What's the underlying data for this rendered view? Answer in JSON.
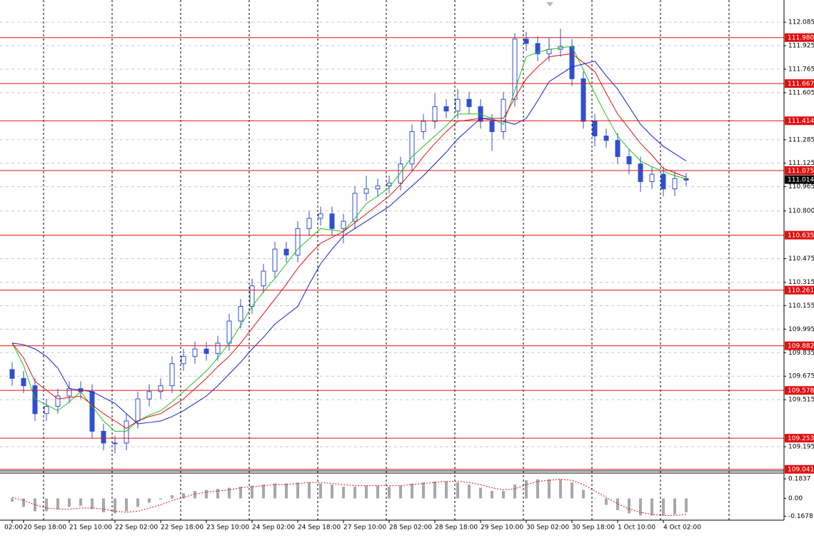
{
  "chart_data": [
    {
      "type": "candlestick",
      "color": "#2f4fd0",
      "categories": [
        "02:00",
        "20 Sep 18:00",
        null,
        null,
        null,
        "21 Sep 10:00",
        null,
        null,
        null,
        "22 Sep 02:00",
        null,
        null,
        null,
        "22 Sep 18:00",
        null,
        null,
        null,
        "23 Sep 10:00",
        null,
        null,
        null,
        "24 Sep 02:00",
        null,
        null,
        null,
        "24 Sep 18:00",
        null,
        null,
        null,
        "27 Sep 10:00",
        null,
        null,
        null,
        "28 Sep 02:00",
        null,
        null,
        null,
        "28 Sep 18:00",
        null,
        null,
        null,
        "29 Sep 10:00",
        null,
        null,
        null,
        "30 Sep 02:00",
        null,
        null,
        null,
        "30 Sep 18:00",
        null,
        null,
        null,
        "1 Oct 10:00",
        null,
        null,
        null,
        "4 Oct 02:00",
        null,
        null
      ],
      "open": [
        109.72,
        109.66,
        109.61,
        109.42,
        109.47,
        109.54,
        109.59,
        109.57,
        109.3,
        109.22,
        109.22,
        109.37,
        109.52,
        109.57,
        109.61,
        109.76,
        109.81,
        109.86,
        109.83,
        109.9,
        110.05,
        110.15,
        110.29,
        110.39,
        110.54,
        110.5,
        110.68,
        110.75,
        110.78,
        110.68,
        110.73,
        110.92,
        110.95,
        110.97,
        110.99,
        111.12,
        111.34,
        111.41,
        111.51,
        111.48,
        111.56,
        111.51,
        111.41,
        111.34,
        111.56,
        111.97,
        111.94,
        111.87,
        111.9,
        111.92,
        111.7,
        111.41,
        111.31,
        111.28,
        111.17,
        111.12,
        111.0,
        111.05,
        110.95,
        111.02
      ],
      "high": [
        109.77,
        109.71,
        109.66,
        109.52,
        109.59,
        109.64,
        109.64,
        109.62,
        109.35,
        109.27,
        109.42,
        109.57,
        109.62,
        109.66,
        109.81,
        109.86,
        109.91,
        109.91,
        109.95,
        110.1,
        110.2,
        110.34,
        110.44,
        110.59,
        110.59,
        110.73,
        110.8,
        110.83,
        110.83,
        110.78,
        110.97,
        111.04,
        111.02,
        111.04,
        111.17,
        111.39,
        111.46,
        111.6,
        111.56,
        111.63,
        111.61,
        111.56,
        111.46,
        111.61,
        112.01,
        112.02,
        111.99,
        111.98,
        112.04,
        111.97,
        111.75,
        111.46,
        111.36,
        111.33,
        111.22,
        111.17,
        111.1,
        111.1,
        111.07,
        111.06
      ],
      "low": [
        109.61,
        109.56,
        109.37,
        109.37,
        109.42,
        109.49,
        109.52,
        109.25,
        109.17,
        109.15,
        109.17,
        109.32,
        109.47,
        109.52,
        109.56,
        109.71,
        109.76,
        109.78,
        109.78,
        109.85,
        110.0,
        110.1,
        110.24,
        110.34,
        110.45,
        110.45,
        110.63,
        110.7,
        110.63,
        110.58,
        110.68,
        110.87,
        110.9,
        110.92,
        110.94,
        111.07,
        111.29,
        111.36,
        111.43,
        111.43,
        111.46,
        111.36,
        111.21,
        111.29,
        111.51,
        111.89,
        111.82,
        111.82,
        111.85,
        111.65,
        111.36,
        111.24,
        111.23,
        111.12,
        111.05,
        110.93,
        110.95,
        110.9,
        110.9,
        110.97
      ],
      "close": [
        109.66,
        109.61,
        109.42,
        109.47,
        109.54,
        109.59,
        109.57,
        109.3,
        109.22,
        109.22,
        109.37,
        109.52,
        109.57,
        109.61,
        109.76,
        109.81,
        109.86,
        109.83,
        109.9,
        110.05,
        110.15,
        110.29,
        110.39,
        110.54,
        110.5,
        110.68,
        110.75,
        110.78,
        110.68,
        110.73,
        110.92,
        110.95,
        110.97,
        110.99,
        111.12,
        111.34,
        111.41,
        111.51,
        111.48,
        111.56,
        111.51,
        111.41,
        111.34,
        111.56,
        111.97,
        111.94,
        111.87,
        111.9,
        111.92,
        111.7,
        111.41,
        111.31,
        111.28,
        111.17,
        111.12,
        111.0,
        111.05,
        110.95,
        111.02,
        111.01
      ],
      "indicators": [
        {
          "color": "#22c022",
          "values": [
            109.9,
            109.75,
            109.52,
            109.48,
            109.44,
            109.5,
            109.57,
            109.47,
            109.37,
            109.3,
            109.3,
            109.37,
            109.41,
            109.44,
            109.5,
            109.57,
            109.64,
            109.71,
            109.8,
            109.9,
            110.02,
            110.15,
            110.25,
            110.34,
            110.44,
            110.54,
            110.61,
            110.68,
            110.67,
            110.66,
            110.75,
            110.85,
            110.9,
            110.96,
            111.06,
            111.17,
            111.24,
            111.31,
            111.38,
            111.46,
            111.46,
            111.46,
            111.43,
            111.39,
            111.62,
            111.85,
            111.88,
            111.9,
            111.91,
            111.92,
            111.76,
            111.6,
            111.45,
            111.31,
            111.22,
            111.14,
            111.1,
            111.07,
            111.04,
            111.02
          ]
        },
        {
          "color": "#e01010",
          "values": [
            109.9,
            109.8,
            109.64,
            109.58,
            109.52,
            109.53,
            109.54,
            109.48,
            109.42,
            109.37,
            109.32,
            109.37,
            109.4,
            109.42,
            109.47,
            109.52,
            109.59,
            109.66,
            109.74,
            109.81,
            109.9,
            110.0,
            110.1,
            110.2,
            110.3,
            110.41,
            110.5,
            110.58,
            110.62,
            110.66,
            110.72,
            110.78,
            110.84,
            110.9,
            110.98,
            111.07,
            111.17,
            111.26,
            111.34,
            111.41,
            111.42,
            111.43,
            111.43,
            111.43,
            111.57,
            111.7,
            111.78,
            111.85,
            111.86,
            111.87,
            111.81,
            111.75,
            111.6,
            111.46,
            111.36,
            111.26,
            111.18,
            111.09,
            111.06,
            111.03
          ]
        },
        {
          "color": "#1020d0",
          "values": [
            109.9,
            109.89,
            109.86,
            109.81,
            109.73,
            109.59,
            109.58,
            109.57,
            109.53,
            109.49,
            109.42,
            109.35,
            109.36,
            109.37,
            109.4,
            109.44,
            109.49,
            109.54,
            109.61,
            109.69,
            109.77,
            109.86,
            109.94,
            110.03,
            110.09,
            110.15,
            110.3,
            110.44,
            110.54,
            110.63,
            110.68,
            110.73,
            110.78,
            110.83,
            110.9,
            110.97,
            111.04,
            111.12,
            111.2,
            111.29,
            111.36,
            111.43,
            111.42,
            111.41,
            111.39,
            111.43,
            111.55,
            111.68,
            111.73,
            111.78,
            111.8,
            111.82,
            111.72,
            111.63,
            111.51,
            111.39,
            111.31,
            111.24,
            111.19,
            111.14
          ]
        }
      ],
      "ylim": [
        109.03,
        112.236
      ],
      "yticks": [
        112.085,
        111.925,
        111.765,
        111.605,
        111.285,
        111.125,
        110.965,
        {
          "value": 110.8,
          "label": "110.800"
        },
        110.475,
        110.315,
        110.155,
        109.995,
        109.835,
        109.675,
        109.515,
        109.195
      ],
      "grid": true,
      "levels": [
        {
          "value": 111.98,
          "label": "111.980"
        },
        111.667,
        111.414,
        111.075,
        110.635,
        110.261,
        109.882,
        109.578,
        109.253,
        109.041
      ],
      "level_color": "#e01010",
      "last_price": 111.014
    },
    {
      "type": "bar",
      "color": "#a8a8a8",
      "values": [
        -0.03,
        -0.08,
        -0.12,
        -0.12,
        -0.1,
        -0.08,
        -0.07,
        -0.1,
        -0.13,
        -0.14,
        -0.12,
        -0.08,
        -0.04,
        -0.01,
        0.03,
        0.05,
        0.07,
        0.08,
        0.09,
        0.1,
        0.11,
        0.12,
        0.13,
        0.14,
        0.14,
        0.15,
        0.15,
        0.14,
        0.13,
        0.11,
        0.11,
        0.12,
        0.12,
        0.11,
        0.12,
        0.14,
        0.15,
        0.16,
        0.16,
        0.15,
        0.13,
        0.1,
        0.07,
        0.07,
        0.13,
        0.17,
        0.18,
        0.18,
        0.18,
        0.15,
        0.08,
        0.0,
        -0.06,
        -0.11,
        -0.14,
        -0.16,
        -0.16,
        -0.16,
        -0.15,
        -0.13
      ],
      "signal": {
        "color": "#e01010",
        "values": [
          0.01,
          -0.02,
          -0.06,
          -0.09,
          -0.1,
          -0.1,
          -0.09,
          -0.09,
          -0.1,
          -0.12,
          -0.13,
          -0.12,
          -0.09,
          -0.06,
          -0.02,
          0.01,
          0.04,
          0.06,
          0.07,
          0.08,
          0.1,
          0.11,
          0.12,
          0.13,
          0.13,
          0.14,
          0.15,
          0.15,
          0.14,
          0.13,
          0.12,
          0.12,
          0.12,
          0.12,
          0.12,
          0.13,
          0.14,
          0.15,
          0.16,
          0.16,
          0.15,
          0.13,
          0.1,
          0.08,
          0.09,
          0.13,
          0.16,
          0.17,
          0.18,
          0.17,
          0.13,
          0.07,
          0.01,
          -0.05,
          -0.1,
          -0.13,
          -0.15,
          -0.16,
          -0.16,
          -0.15
        ]
      },
      "ylim": [
        -0.204,
        0.238
      ],
      "yticks": [
        0.1837,
        {
          "value": 0,
          "label": "0.00"
        },
        -0.1678
      ]
    }
  ]
}
